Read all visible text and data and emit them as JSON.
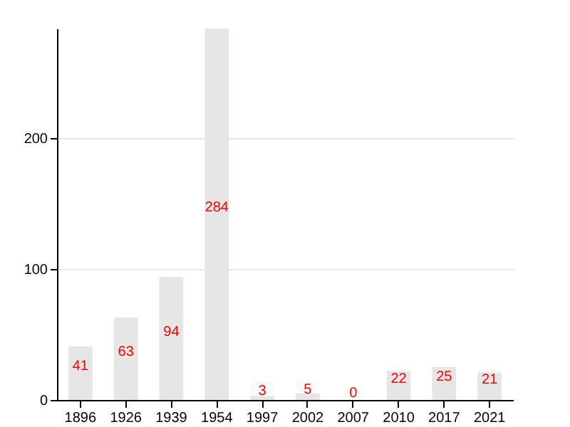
{
  "chart_data": {
    "type": "bar",
    "categories": [
      "1896",
      "1926",
      "1939",
      "1954",
      "1997",
      "2002",
      "2007",
      "2010",
      "2017",
      "2021"
    ],
    "values": [
      41,
      63,
      94,
      284,
      3,
      5,
      0,
      22,
      25,
      21
    ],
    "color": "#e6e6e6",
    "ylim": [
      0,
      284
    ],
    "yticks": [
      0,
      100,
      200
    ],
    "grid": "y",
    "data_labels": true
  }
}
